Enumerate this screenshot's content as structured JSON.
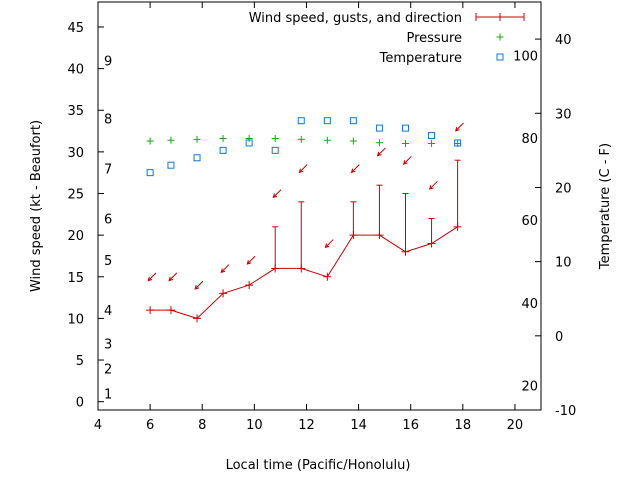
{
  "chart_data": {
    "type": "line",
    "title": "",
    "xlabel": "Local time (Pacific/Honolulu)",
    "ylabel": "Wind speed (kt - Beaufort)",
    "y2label": "Temperature (C - F)",
    "xlim": [
      4,
      21
    ],
    "ylim": [
      -1,
      48
    ],
    "y2lim": [
      -10,
      45
    ],
    "xticks": [
      4,
      6,
      8,
      10,
      12,
      14,
      16,
      18,
      20
    ],
    "yticks": [
      0,
      5,
      10,
      15,
      20,
      25,
      30,
      35,
      40,
      45
    ],
    "y2ticks": [
      -10,
      0,
      10,
      20,
      30,
      40
    ],
    "beaufort_labels": [
      {
        "label": "1",
        "kt": 1
      },
      {
        "label": "2",
        "kt": 4
      },
      {
        "label": "3",
        "kt": 7
      },
      {
        "label": "4",
        "kt": 11
      },
      {
        "label": "5",
        "kt": 17
      },
      {
        "label": "6",
        "kt": 22
      },
      {
        "label": "7",
        "kt": 28
      },
      {
        "label": "8",
        "kt": 34
      },
      {
        "label": "9",
        "kt": 41
      }
    ],
    "fahrenheit_labels": [
      {
        "label": "20",
        "c": -6.7
      },
      {
        "label": "40",
        "c": 4.4
      },
      {
        "label": "60",
        "c": 15.6
      },
      {
        "label": "80",
        "c": 26.7
      },
      {
        "label": "100",
        "c": 37.8
      }
    ],
    "colors": {
      "wind": "#cc0000",
      "pressure": "#11aa11",
      "temperature": "#1177dd",
      "axis": "#000000"
    },
    "legend": {
      "placement": "top-right",
      "entries": [
        "Wind speed, gusts, and direction",
        "Pressure",
        "Temperature"
      ]
    },
    "wind": {
      "name": "Wind speed, gusts, and direction",
      "x": [
        6,
        6.8,
        7.8,
        8.8,
        9.8,
        10.8,
        11.8,
        12.8,
        13.8,
        14.8,
        15.8,
        16.8,
        17.8
      ],
      "speed": [
        11,
        11,
        10,
        13,
        14,
        16,
        16,
        15,
        20,
        20,
        18,
        19,
        21
      ],
      "gust": [
        11,
        11,
        10,
        13,
        14,
        21,
        24,
        15,
        24,
        26,
        25,
        22,
        29
      ],
      "direction_deg": [
        45,
        45,
        45,
        45,
        45,
        45,
        45,
        45,
        45,
        45,
        45,
        45,
        45
      ],
      "arrow_y": [
        15,
        15,
        14,
        16,
        17,
        25,
        28,
        19,
        28,
        30,
        29,
        26,
        33
      ]
    },
    "pressure": {
      "name": "Pressure",
      "x": [
        6,
        6.8,
        7.8,
        8.8,
        9.8,
        10.8,
        11.8,
        12.8,
        13.8,
        14.8,
        15.8,
        16.8,
        17.8
      ],
      "values_kt_axis": [
        31.3,
        31.4,
        31.5,
        31.6,
        31.6,
        31.6,
        31.5,
        31.4,
        31.3,
        31.1,
        31.0,
        31.0,
        31.0
      ]
    },
    "temperature": {
      "name": "Temperature",
      "x": [
        6,
        6.8,
        7.8,
        8.8,
        9.8,
        10.8,
        11.8,
        12.8,
        13.8,
        14.8,
        15.8,
        16.8,
        17.8
      ],
      "values_c": [
        22,
        23,
        24,
        25,
        26,
        25,
        29,
        29,
        29,
        28,
        28,
        27,
        26
      ]
    }
  }
}
